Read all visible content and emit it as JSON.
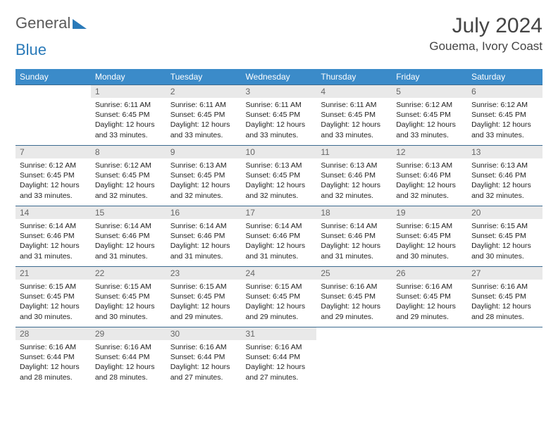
{
  "logo": {
    "part1": "General",
    "part2": "Blue"
  },
  "title": "July 2024",
  "location": "Gouema, Ivory Coast",
  "colors": {
    "header_bg": "#3b8bc9",
    "header_text": "#ffffff",
    "row_border": "#3b6a8f",
    "daynum_bg": "#e9e9e9",
    "daynum_text": "#666666",
    "body_text": "#222222",
    "logo_gray": "#5a5a5a",
    "logo_blue": "#2a7ab9",
    "page_bg": "#ffffff"
  },
  "typography": {
    "title_fontsize": 30,
    "location_fontsize": 17,
    "header_fontsize": 12,
    "daynum_fontsize": 12,
    "cell_fontsize": 10.5
  },
  "weekdays": [
    "Sunday",
    "Monday",
    "Tuesday",
    "Wednesday",
    "Thursday",
    "Friday",
    "Saturday"
  ],
  "weeks": [
    [
      {
        "n": "",
        "lines": [
          "",
          "",
          "",
          ""
        ]
      },
      {
        "n": "1",
        "lines": [
          "Sunrise: 6:11 AM",
          "Sunset: 6:45 PM",
          "Daylight: 12 hours",
          "and 33 minutes."
        ]
      },
      {
        "n": "2",
        "lines": [
          "Sunrise: 6:11 AM",
          "Sunset: 6:45 PM",
          "Daylight: 12 hours",
          "and 33 minutes."
        ]
      },
      {
        "n": "3",
        "lines": [
          "Sunrise: 6:11 AM",
          "Sunset: 6:45 PM",
          "Daylight: 12 hours",
          "and 33 minutes."
        ]
      },
      {
        "n": "4",
        "lines": [
          "Sunrise: 6:11 AM",
          "Sunset: 6:45 PM",
          "Daylight: 12 hours",
          "and 33 minutes."
        ]
      },
      {
        "n": "5",
        "lines": [
          "Sunrise: 6:12 AM",
          "Sunset: 6:45 PM",
          "Daylight: 12 hours",
          "and 33 minutes."
        ]
      },
      {
        "n": "6",
        "lines": [
          "Sunrise: 6:12 AM",
          "Sunset: 6:45 PM",
          "Daylight: 12 hours",
          "and 33 minutes."
        ]
      }
    ],
    [
      {
        "n": "7",
        "lines": [
          "Sunrise: 6:12 AM",
          "Sunset: 6:45 PM",
          "Daylight: 12 hours",
          "and 33 minutes."
        ]
      },
      {
        "n": "8",
        "lines": [
          "Sunrise: 6:12 AM",
          "Sunset: 6:45 PM",
          "Daylight: 12 hours",
          "and 32 minutes."
        ]
      },
      {
        "n": "9",
        "lines": [
          "Sunrise: 6:13 AM",
          "Sunset: 6:45 PM",
          "Daylight: 12 hours",
          "and 32 minutes."
        ]
      },
      {
        "n": "10",
        "lines": [
          "Sunrise: 6:13 AM",
          "Sunset: 6:45 PM",
          "Daylight: 12 hours",
          "and 32 minutes."
        ]
      },
      {
        "n": "11",
        "lines": [
          "Sunrise: 6:13 AM",
          "Sunset: 6:46 PM",
          "Daylight: 12 hours",
          "and 32 minutes."
        ]
      },
      {
        "n": "12",
        "lines": [
          "Sunrise: 6:13 AM",
          "Sunset: 6:46 PM",
          "Daylight: 12 hours",
          "and 32 minutes."
        ]
      },
      {
        "n": "13",
        "lines": [
          "Sunrise: 6:13 AM",
          "Sunset: 6:46 PM",
          "Daylight: 12 hours",
          "and 32 minutes."
        ]
      }
    ],
    [
      {
        "n": "14",
        "lines": [
          "Sunrise: 6:14 AM",
          "Sunset: 6:46 PM",
          "Daylight: 12 hours",
          "and 31 minutes."
        ]
      },
      {
        "n": "15",
        "lines": [
          "Sunrise: 6:14 AM",
          "Sunset: 6:46 PM",
          "Daylight: 12 hours",
          "and 31 minutes."
        ]
      },
      {
        "n": "16",
        "lines": [
          "Sunrise: 6:14 AM",
          "Sunset: 6:46 PM",
          "Daylight: 12 hours",
          "and 31 minutes."
        ]
      },
      {
        "n": "17",
        "lines": [
          "Sunrise: 6:14 AM",
          "Sunset: 6:46 PM",
          "Daylight: 12 hours",
          "and 31 minutes."
        ]
      },
      {
        "n": "18",
        "lines": [
          "Sunrise: 6:14 AM",
          "Sunset: 6:46 PM",
          "Daylight: 12 hours",
          "and 31 minutes."
        ]
      },
      {
        "n": "19",
        "lines": [
          "Sunrise: 6:15 AM",
          "Sunset: 6:45 PM",
          "Daylight: 12 hours",
          "and 30 minutes."
        ]
      },
      {
        "n": "20",
        "lines": [
          "Sunrise: 6:15 AM",
          "Sunset: 6:45 PM",
          "Daylight: 12 hours",
          "and 30 minutes."
        ]
      }
    ],
    [
      {
        "n": "21",
        "lines": [
          "Sunrise: 6:15 AM",
          "Sunset: 6:45 PM",
          "Daylight: 12 hours",
          "and 30 minutes."
        ]
      },
      {
        "n": "22",
        "lines": [
          "Sunrise: 6:15 AM",
          "Sunset: 6:45 PM",
          "Daylight: 12 hours",
          "and 30 minutes."
        ]
      },
      {
        "n": "23",
        "lines": [
          "Sunrise: 6:15 AM",
          "Sunset: 6:45 PM",
          "Daylight: 12 hours",
          "and 29 minutes."
        ]
      },
      {
        "n": "24",
        "lines": [
          "Sunrise: 6:15 AM",
          "Sunset: 6:45 PM",
          "Daylight: 12 hours",
          "and 29 minutes."
        ]
      },
      {
        "n": "25",
        "lines": [
          "Sunrise: 6:16 AM",
          "Sunset: 6:45 PM",
          "Daylight: 12 hours",
          "and 29 minutes."
        ]
      },
      {
        "n": "26",
        "lines": [
          "Sunrise: 6:16 AM",
          "Sunset: 6:45 PM",
          "Daylight: 12 hours",
          "and 29 minutes."
        ]
      },
      {
        "n": "27",
        "lines": [
          "Sunrise: 6:16 AM",
          "Sunset: 6:45 PM",
          "Daylight: 12 hours",
          "and 28 minutes."
        ]
      }
    ],
    [
      {
        "n": "28",
        "lines": [
          "Sunrise: 6:16 AM",
          "Sunset: 6:44 PM",
          "Daylight: 12 hours",
          "and 28 minutes."
        ]
      },
      {
        "n": "29",
        "lines": [
          "Sunrise: 6:16 AM",
          "Sunset: 6:44 PM",
          "Daylight: 12 hours",
          "and 28 minutes."
        ]
      },
      {
        "n": "30",
        "lines": [
          "Sunrise: 6:16 AM",
          "Sunset: 6:44 PM",
          "Daylight: 12 hours",
          "and 27 minutes."
        ]
      },
      {
        "n": "31",
        "lines": [
          "Sunrise: 6:16 AM",
          "Sunset: 6:44 PM",
          "Daylight: 12 hours",
          "and 27 minutes."
        ]
      },
      {
        "n": "",
        "lines": [
          "",
          "",
          "",
          ""
        ]
      },
      {
        "n": "",
        "lines": [
          "",
          "",
          "",
          ""
        ]
      },
      {
        "n": "",
        "lines": [
          "",
          "",
          "",
          ""
        ]
      }
    ]
  ]
}
